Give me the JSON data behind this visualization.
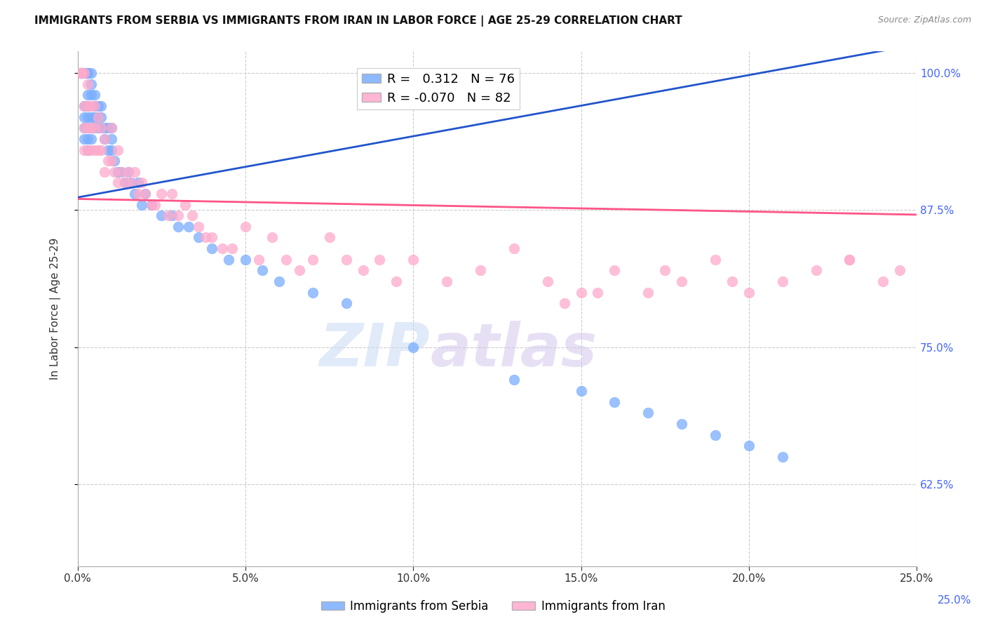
{
  "title": "IMMIGRANTS FROM SERBIA VS IMMIGRANTS FROM IRAN IN LABOR FORCE | AGE 25-29 CORRELATION CHART",
  "source": "Source: ZipAtlas.com",
  "ylabel": "In Labor Force | Age 25-29",
  "serbia_R": 0.312,
  "serbia_N": 76,
  "iran_R": -0.07,
  "iran_N": 82,
  "serbia_color": "#7aadff",
  "iran_color": "#ffaacc",
  "serbia_line_color": "#2255cc",
  "iran_line_color": "#ff5588",
  "watermark_zip": "ZIP",
  "watermark_atlas": "atlas",
  "xlim": [
    0.0,
    0.25
  ],
  "ylim": [
    0.55,
    1.02
  ],
  "yticks": [
    0.625,
    0.75,
    0.875,
    1.0
  ],
  "ytick_labels": [
    "62.5%",
    "75.0%",
    "87.5%",
    "100.0%"
  ],
  "xticks": [
    0.0,
    0.05,
    0.1,
    0.15,
    0.2,
    0.25
  ],
  "xtick_labels": [
    "0.0%",
    "5.0%",
    "10.0%",
    "15.0%",
    "20.0%",
    "25.0%"
  ],
  "serbia_x": [
    0.001,
    0.001,
    0.001,
    0.001,
    0.001,
    0.001,
    0.002,
    0.002,
    0.002,
    0.002,
    0.002,
    0.002,
    0.002,
    0.003,
    0.003,
    0.003,
    0.003,
    0.003,
    0.003,
    0.003,
    0.003,
    0.004,
    0.004,
    0.004,
    0.004,
    0.004,
    0.004,
    0.005,
    0.005,
    0.005,
    0.005,
    0.006,
    0.006,
    0.006,
    0.007,
    0.007,
    0.007,
    0.008,
    0.008,
    0.009,
    0.009,
    0.01,
    0.01,
    0.01,
    0.011,
    0.012,
    0.013,
    0.014,
    0.015,
    0.016,
    0.017,
    0.018,
    0.019,
    0.02,
    0.022,
    0.025,
    0.028,
    0.03,
    0.033,
    0.036,
    0.04,
    0.045,
    0.05,
    0.055,
    0.06,
    0.07,
    0.08,
    0.1,
    0.13,
    0.15,
    0.16,
    0.17,
    0.18,
    0.19,
    0.2,
    0.21
  ],
  "serbia_y": [
    1.0,
    1.0,
    1.0,
    1.0,
    1.0,
    1.0,
    1.0,
    1.0,
    1.0,
    0.97,
    0.96,
    0.95,
    0.94,
    1.0,
    1.0,
    0.98,
    0.97,
    0.96,
    0.95,
    0.94,
    0.93,
    1.0,
    0.99,
    0.98,
    0.96,
    0.95,
    0.94,
    0.98,
    0.97,
    0.96,
    0.95,
    0.97,
    0.96,
    0.95,
    0.97,
    0.96,
    0.95,
    0.95,
    0.94,
    0.95,
    0.93,
    0.95,
    0.94,
    0.93,
    0.92,
    0.91,
    0.91,
    0.9,
    0.91,
    0.9,
    0.89,
    0.9,
    0.88,
    0.89,
    0.88,
    0.87,
    0.87,
    0.86,
    0.86,
    0.85,
    0.84,
    0.83,
    0.83,
    0.82,
    0.81,
    0.8,
    0.79,
    0.75,
    0.72,
    0.71,
    0.7,
    0.69,
    0.68,
    0.67,
    0.66,
    0.65
  ],
  "iran_x": [
    0.001,
    0.001,
    0.001,
    0.002,
    0.002,
    0.002,
    0.002,
    0.003,
    0.003,
    0.003,
    0.003,
    0.004,
    0.004,
    0.004,
    0.005,
    0.005,
    0.005,
    0.006,
    0.006,
    0.007,
    0.007,
    0.008,
    0.008,
    0.009,
    0.01,
    0.01,
    0.011,
    0.012,
    0.012,
    0.013,
    0.014,
    0.015,
    0.016,
    0.017,
    0.018,
    0.019,
    0.02,
    0.022,
    0.023,
    0.025,
    0.027,
    0.028,
    0.03,
    0.032,
    0.034,
    0.036,
    0.038,
    0.04,
    0.043,
    0.046,
    0.05,
    0.054,
    0.058,
    0.062,
    0.066,
    0.07,
    0.075,
    0.08,
    0.085,
    0.09,
    0.095,
    0.1,
    0.11,
    0.12,
    0.13,
    0.14,
    0.15,
    0.16,
    0.17,
    0.18,
    0.19,
    0.2,
    0.21,
    0.22,
    0.23,
    0.24,
    0.175,
    0.195,
    0.145,
    0.155,
    0.245,
    0.23
  ],
  "iran_y": [
    1.0,
    1.0,
    1.0,
    1.0,
    0.97,
    0.95,
    0.93,
    0.99,
    0.97,
    0.95,
    0.93,
    0.97,
    0.95,
    0.93,
    0.97,
    0.95,
    0.93,
    0.96,
    0.93,
    0.95,
    0.93,
    0.94,
    0.91,
    0.92,
    0.95,
    0.92,
    0.91,
    0.93,
    0.9,
    0.91,
    0.9,
    0.91,
    0.9,
    0.91,
    0.89,
    0.9,
    0.89,
    0.88,
    0.88,
    0.89,
    0.87,
    0.89,
    0.87,
    0.88,
    0.87,
    0.86,
    0.85,
    0.85,
    0.84,
    0.84,
    0.86,
    0.83,
    0.85,
    0.83,
    0.82,
    0.83,
    0.85,
    0.83,
    0.82,
    0.83,
    0.81,
    0.83,
    0.81,
    0.82,
    0.84,
    0.81,
    0.8,
    0.82,
    0.8,
    0.81,
    0.83,
    0.8,
    0.81,
    0.82,
    0.83,
    0.81,
    0.82,
    0.81,
    0.79,
    0.8,
    0.82,
    0.83
  ],
  "title_fontsize": 11,
  "axis_label_fontsize": 11,
  "tick_fontsize": 11,
  "right_tick_color": "#4466ff",
  "bottom_right_label": "25.0%",
  "bottom_right_color": "#4466ff"
}
